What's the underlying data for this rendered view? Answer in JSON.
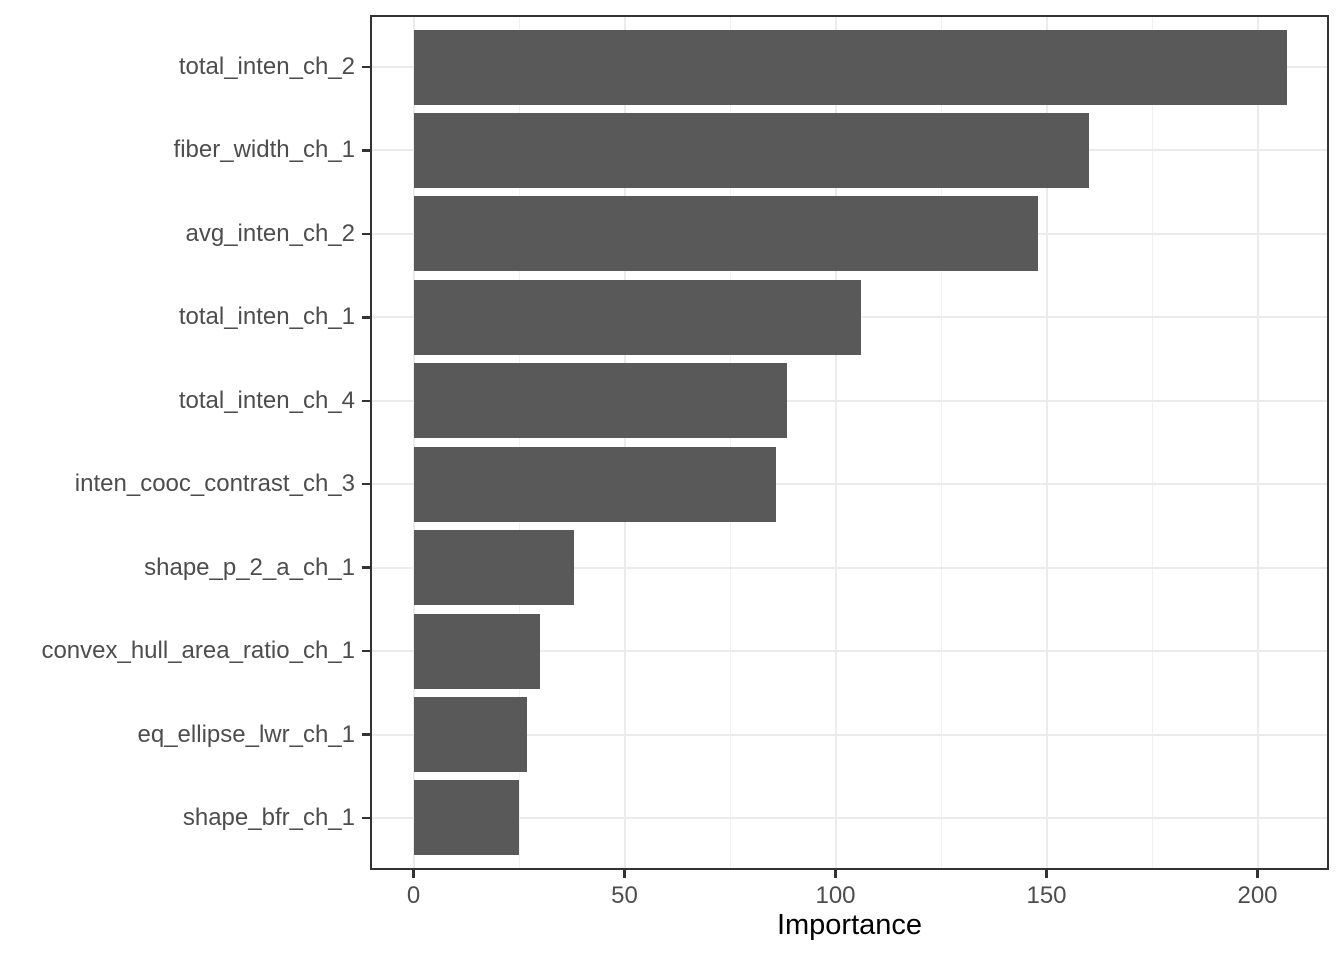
{
  "chart_data": {
    "type": "bar",
    "orientation": "horizontal",
    "title": "",
    "xlabel": "Importance",
    "ylabel": "",
    "categories": [
      "total_inten_ch_2",
      "fiber_width_ch_1",
      "avg_inten_ch_2",
      "total_inten_ch_1",
      "total_inten_ch_4",
      "inten_cooc_contrast_ch_3",
      "shape_p_2_a_ch_1",
      "convex_hull_area_ratio_ch_1",
      "eq_ellipse_lwr_ch_1",
      "shape_bfr_ch_1"
    ],
    "values": [
      207,
      160,
      148,
      106,
      88.5,
      86,
      38,
      30,
      27,
      25
    ],
    "xlim": [
      0,
      217
    ],
    "x_major_ticks": [
      0,
      50,
      100,
      150,
      200
    ],
    "x_tick_labels": [
      "0",
      "50",
      "100",
      "150",
      "200"
    ],
    "x_minor_ticks": [
      25,
      75,
      125,
      175
    ],
    "grid": true,
    "legend": "none",
    "bar_color": "#595959",
    "panel_border_color": "#333333",
    "grid_major_color": "#EBEBEB",
    "grid_minor_color": "#F1F1F1",
    "tick_mark_color": "#333333",
    "tick_label_color": "#4D4D4D",
    "axis_title_color": "#000000",
    "background_color": "#FFFFFF"
  }
}
